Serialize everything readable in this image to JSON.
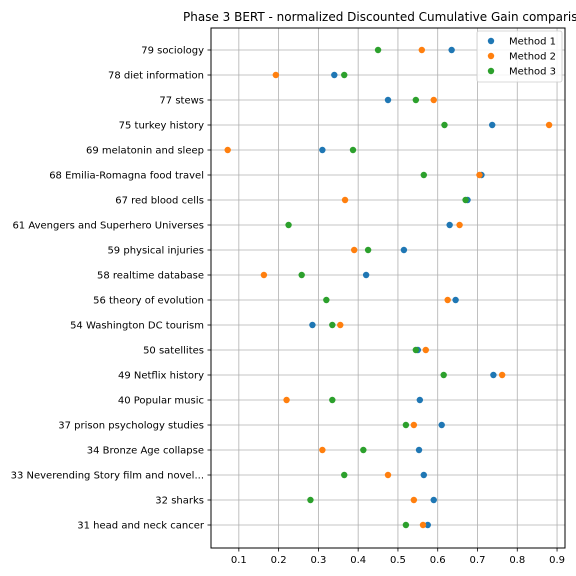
{
  "chart_data": {
    "type": "scatter",
    "title": "Phase 3 BERT - normalized Discounted Cumulative Gain comparis",
    "xlabel": "",
    "ylabel": "",
    "xlim": [
      0.03,
      0.92
    ],
    "xticks": [
      0.1,
      0.2,
      0.3,
      0.4,
      0.5,
      0.6,
      0.7,
      0.8,
      0.9
    ],
    "xtick_labels": [
      "0.1",
      "0.2",
      "0.3",
      "0.4",
      "0.5",
      "0.6",
      "0.7",
      "0.8",
      "0.9"
    ],
    "grid": true,
    "legend_position": "top-right",
    "categories": [
      "79 sociology",
      "78 diet information",
      "77 stews",
      "75 turkey history",
      "69 melatonin and sleep",
      "68 Emilia-Romagna food travel",
      "67 red blood cells",
      "61 Avengers and Superhero Universes",
      "59 physical injuries",
      "58 realtime database",
      "56 theory of evolution",
      "54 Washington DC tourism",
      "50 satellites",
      "49 Netflix history",
      "40 Popular music",
      "37 prison psychology studies",
      "34 Bronze Age collapse",
      "33 Neverending Story film and novel...",
      "32 sharks",
      "31 head and neck cancer"
    ],
    "series": [
      {
        "name": "Method 1",
        "color": "#1f77b4",
        "values": [
          0.635,
          0.34,
          0.475,
          0.737,
          0.31,
          0.71,
          0.675,
          0.63,
          0.515,
          0.42,
          0.645,
          0.285,
          0.55,
          0.74,
          0.555,
          0.61,
          0.553,
          0.565,
          0.59,
          0.575
        ]
      },
      {
        "name": "Method 2",
        "color": "#ff7f0e",
        "values": [
          0.56,
          0.193,
          0.59,
          0.88,
          0.072,
          0.705,
          0.367,
          0.655,
          0.39,
          0.163,
          0.625,
          0.355,
          0.57,
          0.762,
          0.22,
          0.54,
          0.31,
          0.475,
          0.54,
          0.563
        ]
      },
      {
        "name": "Method 3",
        "color": "#2ca02c",
        "values": [
          0.45,
          0.365,
          0.545,
          0.617,
          0.387,
          0.565,
          0.67,
          0.225,
          0.425,
          0.258,
          0.32,
          0.335,
          0.545,
          0.615,
          0.335,
          0.52,
          0.413,
          0.365,
          0.28,
          0.52
        ]
      }
    ]
  }
}
